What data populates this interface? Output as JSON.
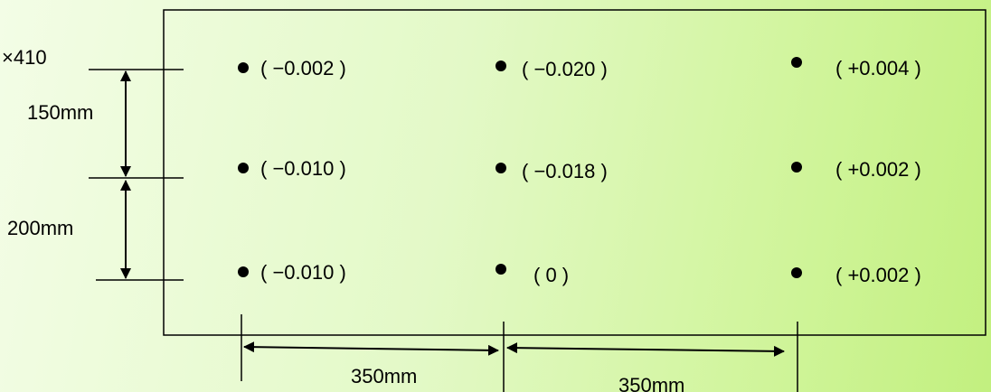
{
  "plate_label": "×410",
  "dimensions": {
    "vertical": [
      "150mm",
      "200mm"
    ],
    "horizontal": [
      "350mm",
      "350mm"
    ]
  },
  "measurements": [
    [
      "( −0.002 )",
      "( −0.020 )",
      "( +0.004 )"
    ],
    [
      "( −0.010 )",
      "( −0.018 )",
      "( +0.002 )"
    ],
    [
      "( −0.010 )",
      "( 0 )",
      "( +0.002 )"
    ]
  ]
}
